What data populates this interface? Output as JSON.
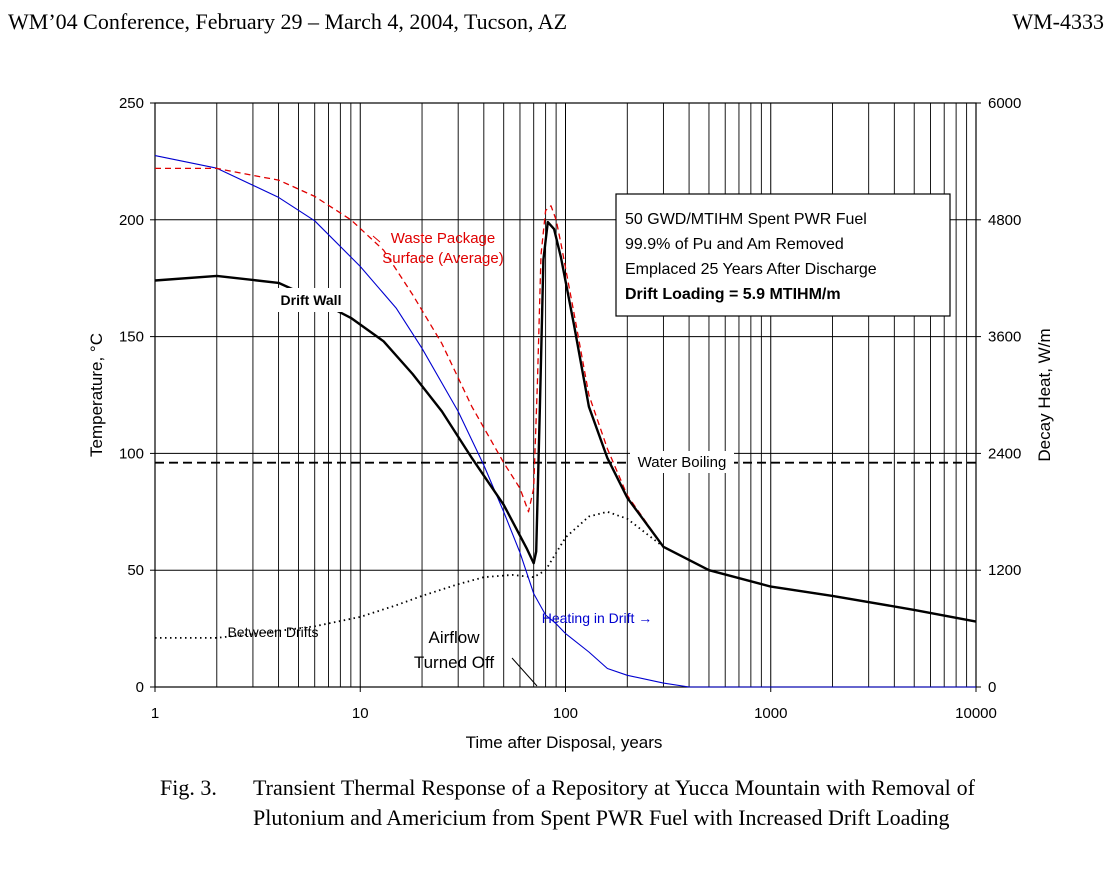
{
  "header": {
    "conference": "WM’04 Conference, February 29 – March 4, 2004, Tucson, AZ",
    "paper_id": "WM-4333"
  },
  "caption": {
    "label": "Fig. 3.",
    "text": "Transient Thermal Response of a Repository at Yucca Mountain with Removal of Plutonium and Americium from Spent PWR Fuel with Increased Drift Loading"
  },
  "chart_data": {
    "type": "line",
    "title": "",
    "xlabel": "Time after Disposal, years",
    "ylabel": "Temperature, °C",
    "y2label": "Decay Heat, W/m",
    "x_scale": "log",
    "xlim": [
      1,
      10000
    ],
    "ylim": [
      0,
      250
    ],
    "y2lim": [
      0,
      6000
    ],
    "x_ticks": [
      1,
      10,
      100,
      1000,
      10000
    ],
    "x_tick_labels": [
      "1",
      "10",
      "100",
      "1000",
      "10000"
    ],
    "y_ticks": [
      0,
      50,
      100,
      150,
      200,
      250
    ],
    "y_tick_labels": [
      "0",
      "50",
      "100",
      "150",
      "200",
      "250"
    ],
    "y2_ticks": [
      0,
      1200,
      2400,
      3600,
      4800,
      6000
    ],
    "y2_tick_labels": [
      "0",
      "1200",
      "2400",
      "3600",
      "4800",
      "6000"
    ],
    "grid": true,
    "colors": {
      "drift_wall": "#000000",
      "waste_package": "#e00000",
      "between_drifts": "#000000",
      "decay_heat": "#0000d0",
      "water_boiling": "#000000"
    },
    "series": [
      {
        "key": "drift_wall",
        "name": "Drift Wall",
        "axis": "left",
        "style": "solid-thick",
        "x": [
          1,
          2,
          4,
          6,
          9,
          13,
          18,
          25,
          35,
          50,
          65,
          70,
          72,
          75,
          78,
          82,
          88,
          95,
          110,
          130,
          160,
          200,
          300,
          500,
          1000,
          2000,
          5000,
          10000
        ],
        "y": [
          174,
          176,
          173,
          166,
          158,
          148,
          134,
          118,
          98,
          78,
          59,
          53,
          58,
          120,
          183,
          199,
          196,
          184,
          155,
          120,
          98,
          81,
          60,
          50,
          43,
          39,
          33,
          28
        ]
      },
      {
        "key": "waste_package",
        "name": "Waste Package Surface (Average)",
        "axis": "left",
        "style": "dashed",
        "x": [
          1,
          1.5,
          2,
          3,
          4,
          6,
          9,
          13,
          18,
          25,
          35,
          50,
          60,
          66,
          70,
          73,
          76,
          80,
          85,
          90,
          95,
          110,
          130,
          160,
          200,
          300,
          500,
          1000,
          2000,
          5000,
          10000
        ],
        "y": [
          222,
          222,
          222,
          219,
          217,
          210,
          200,
          187,
          168,
          147,
          120,
          96,
          85,
          75,
          85,
          130,
          185,
          204,
          206,
          200,
          190,
          160,
          125,
          102,
          82,
          60,
          50,
          43,
          39,
          33,
          28
        ]
      },
      {
        "key": "between_drifts",
        "name": "Between Drifts",
        "axis": "left",
        "style": "dotted",
        "x": [
          1,
          2,
          4,
          6,
          10,
          15,
          20,
          30,
          40,
          55,
          70,
          80,
          100,
          130,
          160,
          200,
          300,
          500,
          1000,
          2000,
          5000,
          10000
        ],
        "y": [
          21,
          21,
          24,
          26,
          30,
          35,
          39,
          44,
          47,
          48,
          47,
          50,
          64,
          73,
          75,
          72,
          60,
          50,
          43,
          39,
          33,
          28
        ]
      },
      {
        "key": "decay_heat",
        "name": "Heating in Drift",
        "axis": "right",
        "style": "solid-thin",
        "x": [
          1,
          2,
          4,
          6,
          10,
          15,
          20,
          30,
          40,
          50,
          60,
          70,
          80,
          90,
          100,
          130,
          160,
          200,
          300,
          400,
          1000,
          10000
        ],
        "y": [
          5460,
          5330,
          5030,
          4790,
          4320,
          3890,
          3480,
          2830,
          2280,
          1800,
          1380,
          960,
          740,
          650,
          550,
          360,
          190,
          120,
          40,
          0,
          0,
          0
        ]
      },
      {
        "key": "water_boiling",
        "name": "Water Boiling",
        "axis": "left",
        "style": "dashed-thick",
        "x": [
          1,
          10000
        ],
        "y": [
          96,
          96
        ]
      }
    ],
    "annotations": {
      "waste_package_line1": "Waste Package",
      "waste_package_line2": "Surface (Average)",
      "drift_wall": "Drift Wall",
      "water_boiling": "Water Boiling",
      "between_drifts": "Between Drifts",
      "heating_in_drift": "Heating in Drift →",
      "airflow_line1": "Airflow",
      "airflow_line2": "Turned Off"
    },
    "info_box": {
      "line1": "50 GWD/MTIHM Spent PWR Fuel",
      "line2": "99.9% of Pu and Am Removed",
      "line3": "Emplaced 25 Years After Discharge",
      "line4": "Drift Loading = 5.9  MTIHM/m"
    }
  }
}
